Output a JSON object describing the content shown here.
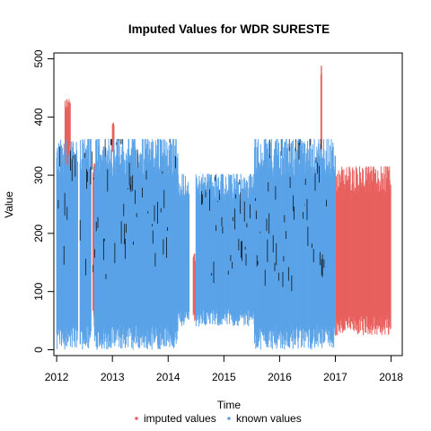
{
  "chart_data": {
    "type": "line",
    "title": "Imputed Values for  WDR SURESTE",
    "xlabel": "Time",
    "ylabel": "Value",
    "xlim": [
      2011.95,
      2018.2
    ],
    "ylim": [
      -10,
      510
    ],
    "x_ticks": [
      2012,
      2013,
      2014,
      2015,
      2016,
      2017,
      2018
    ],
    "y_ticks": [
      0,
      100,
      200,
      300,
      400,
      500
    ],
    "legend": {
      "placement": "bottom"
    },
    "series": [
      {
        "name": "imputed values",
        "color": "#e8615f",
        "segments": [
          {
            "x_start": 2012.15,
            "x_end": 2012.25,
            "low": 300,
            "high": 435
          },
          {
            "x_start": 2012.65,
            "x_end": 2012.7,
            "low": 40,
            "high": 320
          },
          {
            "x_start": 2013.0,
            "x_end": 2013.03,
            "low": 340,
            "high": 390
          },
          {
            "x_start": 2014.45,
            "x_end": 2014.5,
            "low": 50,
            "high": 165
          },
          {
            "x_start": 2016.74,
            "x_end": 2016.76,
            "low": 340,
            "high": 488
          },
          {
            "x_start": 2017.0,
            "x_end": 2018.0,
            "low": 25,
            "high": 315
          }
        ]
      },
      {
        "name": "known values",
        "color": "#5aa3e8",
        "segments": [
          {
            "x_start": 2012.0,
            "x_end": 2012.38,
            "low": 0,
            "high": 362
          },
          {
            "x_start": 2012.42,
            "x_end": 2012.62,
            "low": 0,
            "high": 362
          },
          {
            "x_start": 2012.68,
            "x_end": 2014.18,
            "low": 0,
            "high": 362
          },
          {
            "x_start": 2014.18,
            "x_end": 2014.38,
            "low": 40,
            "high": 302
          },
          {
            "x_start": 2014.5,
            "x_end": 2015.58,
            "low": 40,
            "high": 302
          },
          {
            "x_start": 2015.55,
            "x_end": 2017.0,
            "low": 0,
            "high": 362
          }
        ]
      },
      {
        "name": "",
        "color": "#000000",
        "segments": [
          {
            "x_start": 2012.0,
            "x_end": 2014.18,
            "low": 120,
            "high": 362
          },
          {
            "x_start": 2014.6,
            "x_end": 2015.5,
            "low": 110,
            "high": 300
          },
          {
            "x_start": 2015.55,
            "x_end": 2016.9,
            "low": 100,
            "high": 362
          }
        ]
      }
    ]
  }
}
